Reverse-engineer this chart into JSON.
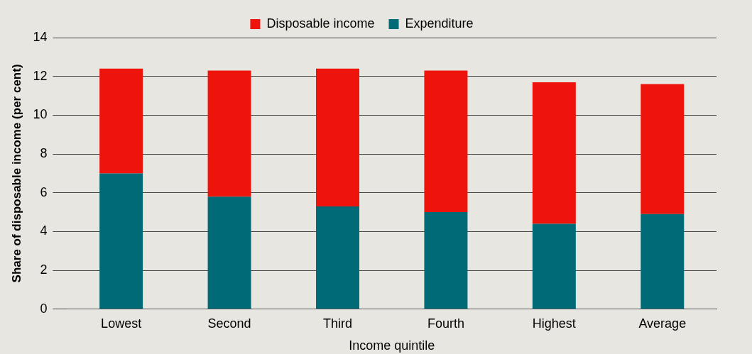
{
  "chart_data": {
    "type": "bar",
    "stacked": true,
    "xlabel": "Income quintile",
    "ylabel": "Share of disposable income (per cent)",
    "categories": [
      "Lowest",
      "Second",
      "Third",
      "Fourth",
      "Highest",
      "Average"
    ],
    "series": [
      {
        "name": "Expenditure",
        "color": "#006b77",
        "values": [
          7.0,
          5.8,
          5.3,
          5.0,
          4.4,
          4.9
        ]
      },
      {
        "name": "Disposable income",
        "color": "#ee140c",
        "values": [
          5.4,
          6.5,
          7.1,
          7.3,
          7.3,
          6.7
        ]
      }
    ],
    "ylim": [
      0,
      14
    ],
    "yticks": [
      0,
      2,
      4,
      6,
      8,
      10,
      12,
      14
    ],
    "grid": "y",
    "legend": "top"
  }
}
